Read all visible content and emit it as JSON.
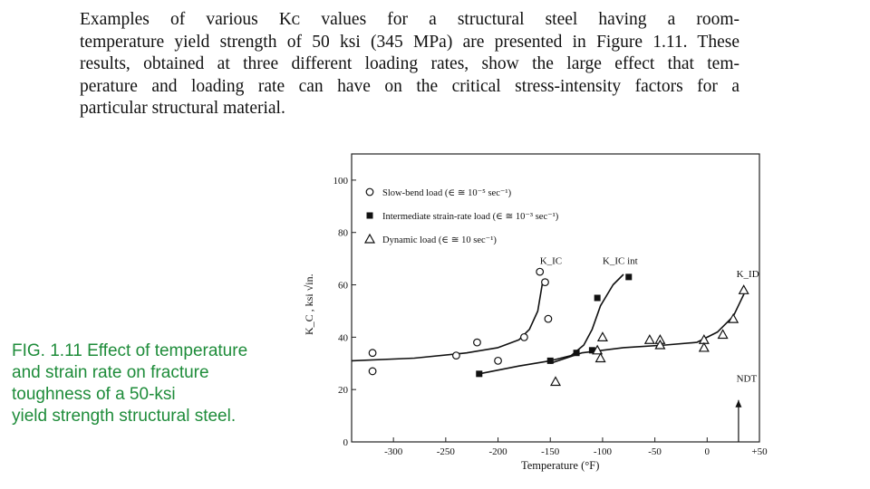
{
  "paragraph": {
    "lines": [
      "Examples of various Kᴄ values for a structural steel having a room-",
      "temperature yield strength of 50 ksi (345 MPa) are presented in Figure 1.11. These",
      "results, obtained at three different loading rates, show the large effect that tem-",
      "perature and loading rate can have on the critical stress-intensity factors for a",
      "particular structural material."
    ]
  },
  "caption": {
    "lines": [
      "FIG. 1.11 Effect of temperature",
      "and strain rate on fracture",
      "toughness of a 50-ksi",
      "yield strength structural steel."
    ]
  },
  "chart_data": {
    "type": "scatter",
    "xlabel": "Temperature (°F)",
    "ylabel": "K_C , ksi √in.",
    "xlim": [
      -340,
      50
    ],
    "ylim": [
      0,
      110
    ],
    "xticks": [
      -300,
      -250,
      -200,
      -150,
      -100,
      -50,
      0,
      50
    ],
    "xtick_labels": [
      "-300",
      "-250",
      "-200",
      "-150",
      "-100",
      "-50",
      "0",
      "+50"
    ],
    "yticks": [
      0,
      20,
      40,
      60,
      80,
      100
    ],
    "ytick_labels": [
      "0",
      "20",
      "40",
      "60",
      "80",
      "100"
    ],
    "legend_position": "top-left",
    "series": [
      {
        "name": "Slow-bend load (∈ ≅ 10⁻⁵ sec⁻¹)",
        "marker": "circle",
        "points": [
          [
            -320,
            34
          ],
          [
            -320,
            27
          ],
          [
            -240,
            33
          ],
          [
            -220,
            38
          ],
          [
            -200,
            31
          ],
          [
            -175,
            40
          ],
          [
            -160,
            65
          ],
          [
            -155,
            61
          ],
          [
            -152,
            47
          ]
        ]
      },
      {
        "name": "Intermediate strain-rate load (∈ ≅ 10⁻³ sec⁻¹)",
        "marker": "square",
        "points": [
          [
            -218,
            26
          ],
          [
            -150,
            31
          ],
          [
            -125,
            34
          ],
          [
            -110,
            35
          ],
          [
            -105,
            55
          ],
          [
            -75,
            63
          ]
        ]
      },
      {
        "name": "Dynamic load (∈ ≅ 10 sec⁻¹)",
        "marker": "triangle",
        "points": [
          [
            -145,
            23
          ],
          [
            -105,
            35
          ],
          [
            -102,
            32
          ],
          [
            -100,
            40
          ],
          [
            -55,
            39
          ],
          [
            -45,
            39
          ],
          [
            -45,
            37
          ],
          [
            -3,
            39
          ],
          [
            -3,
            36
          ],
          [
            15,
            41
          ],
          [
            25,
            47
          ],
          [
            35,
            58
          ]
        ]
      }
    ],
    "curves": [
      [
        [
          -340,
          31
        ],
        [
          -280,
          32
        ],
        [
          -230,
          34
        ],
        [
          -200,
          36
        ],
        [
          -180,
          39
        ],
        [
          -170,
          43
        ],
        [
          -162,
          50
        ],
        [
          -157,
          62
        ]
      ],
      [
        [
          -218,
          26
        ],
        [
          -180,
          29
        ],
        [
          -150,
          31
        ],
        [
          -130,
          33
        ],
        [
          -118,
          37
        ],
        [
          -110,
          43
        ],
        [
          -102,
          52
        ],
        [
          -90,
          60
        ],
        [
          -80,
          64
        ]
      ],
      [
        [
          -150,
          30
        ],
        [
          -120,
          34
        ],
        [
          -80,
          36
        ],
        [
          -40,
          37
        ],
        [
          -10,
          38
        ],
        [
          10,
          42
        ],
        [
          25,
          48
        ],
        [
          37,
          58
        ]
      ]
    ],
    "annotations": [
      {
        "label": "K_IC",
        "x": -160,
        "y": 68
      },
      {
        "label": "K_IC int",
        "x": -100,
        "y": 68
      },
      {
        "label": "K_ID",
        "x": 28,
        "y": 63
      },
      {
        "label": "NDT",
        "x": 28,
        "y": 23
      }
    ]
  }
}
